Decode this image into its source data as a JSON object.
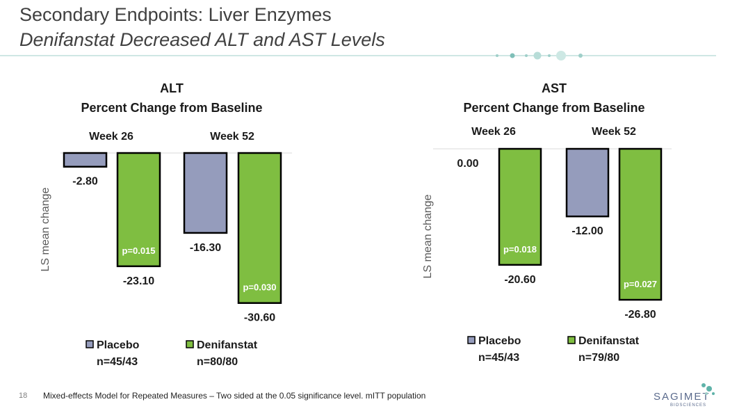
{
  "slide": {
    "title": "Secondary Endpoints: Liver Enzymes",
    "subtitle": "Denifanstat Decreased ALT and AST Levels",
    "page_number": "18",
    "footnote": "Mixed-effects Model for Repeated Measures – Two sided at the 0.05 significance level. mITT population",
    "logo_text": "SAGIMET",
    "logo_sub": "BIOSCIENCES"
  },
  "colors": {
    "placebo": "#959cbc",
    "denifanstat": "#7fbe41",
    "title": "#404040",
    "accent": "#9fcfc9"
  },
  "chart_data": [
    {
      "type": "bar",
      "title": "ALT",
      "subtitle": "Percent Change from Baseline",
      "ylabel": "LS mean change",
      "categories": [
        "Week 26",
        "Week 52"
      ],
      "ylim": [
        -30.6,
        0
      ],
      "series": [
        {
          "name": "Placebo",
          "n": "n=45/43",
          "values": [
            -2.8,
            -16.3
          ],
          "labels": [
            "-2.80",
            "-16.30"
          ],
          "pvalues": [
            "",
            ""
          ]
        },
        {
          "name": "Denifanstat",
          "n": "n=80/80",
          "values": [
            -23.1,
            -30.6
          ],
          "labels": [
            "-23.10",
            "-30.60"
          ],
          "pvalues": [
            "p=0.015",
            "p=0.030"
          ]
        }
      ]
    },
    {
      "type": "bar",
      "title": "AST",
      "subtitle": "Percent Change from Baseline",
      "ylabel": "LS mean change",
      "categories": [
        "Week 26",
        "Week 52"
      ],
      "ylim": [
        -26.8,
        0
      ],
      "series": [
        {
          "name": "Placebo",
          "n": "n=45/43",
          "values": [
            0.0,
            -12.0
          ],
          "labels": [
            "0.00",
            "-12.00"
          ],
          "pvalues": [
            "",
            ""
          ]
        },
        {
          "name": "Denifanstat",
          "n": "n=79/80",
          "values": [
            -20.6,
            -26.8
          ],
          "labels": [
            "-20.60",
            "-26.80"
          ],
          "pvalues": [
            "p=0.018",
            "p=0.027"
          ]
        }
      ]
    }
  ]
}
